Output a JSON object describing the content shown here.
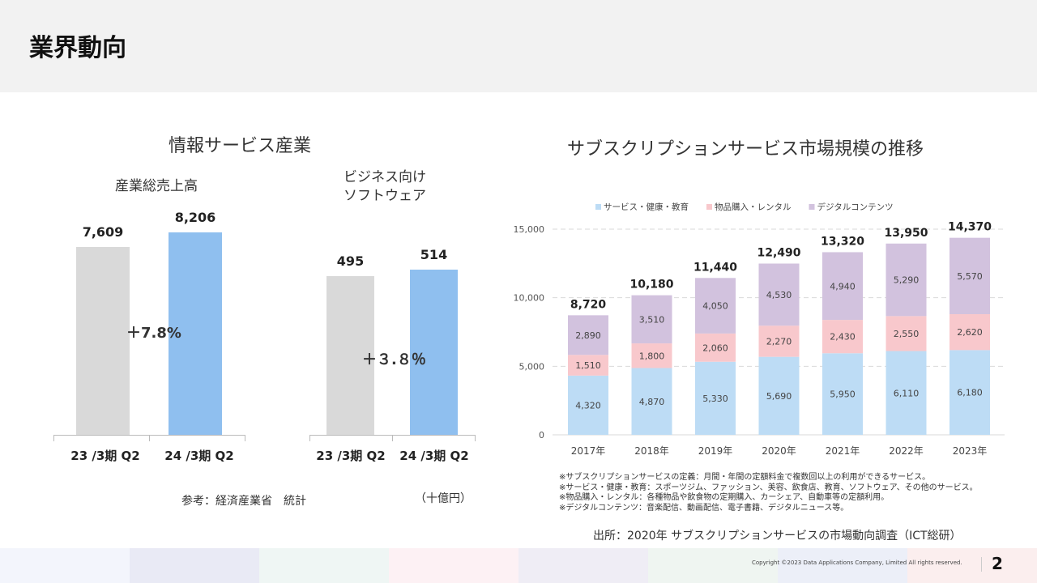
{
  "header": {
    "title": "業界動向"
  },
  "left": {
    "title": "情報サービス産業",
    "chart1": {
      "subtitle": "産業総売上高",
      "categories": [
        "23 /3期 Q2",
        "24 /3期 Q2"
      ],
      "values": [
        7609,
        8206
      ],
      "labels": [
        "7,609",
        "8,206"
      ],
      "growth": "＋7.8%",
      "colors": [
        "#d9d9d9",
        "#8fbfef"
      ]
    },
    "chart2": {
      "subtitle_line1": "ビジネス向け",
      "subtitle_line2": "ソフトウェア",
      "categories": [
        "23 /3期 Q2",
        "24 /3期 Q2"
      ],
      "values": [
        495,
        514
      ],
      "labels": [
        "495",
        "514"
      ],
      "growth": "＋３.８％",
      "colors": [
        "#d9d9d9",
        "#8fbfef"
      ]
    },
    "source": "参考：経済産業省　統計",
    "unit": "（十億円）"
  },
  "chart_data": {
    "type": "bar",
    "stacked": true,
    "title": "サブスクリプションサービス市場規模の推移",
    "categories": [
      "2017年",
      "2018年",
      "2019年",
      "2020年",
      "2021年",
      "2022年",
      "2023年"
    ],
    "series": [
      {
        "name": "サービス・健康・教育",
        "values": [
          4320,
          4870,
          5330,
          5690,
          5950,
          6110,
          6180
        ],
        "color": "#bddcf5"
      },
      {
        "name": "物品購入・レンタル",
        "values": [
          1510,
          1800,
          2060,
          2270,
          2430,
          2550,
          2620
        ],
        "color": "#f8c8cc"
      },
      {
        "name": "デジタルコンテンツ",
        "values": [
          2890,
          3510,
          4050,
          4530,
          4940,
          5290,
          5570
        ],
        "color": "#d2c2de"
      }
    ],
    "totals": [
      8720,
      10180,
      11440,
      12490,
      13320,
      13950,
      14370
    ],
    "ylim": [
      0,
      15000
    ],
    "yticks": [
      0,
      5000,
      10000,
      15000
    ],
    "grid": true,
    "legend": "top"
  },
  "notes": [
    "※サブスクリプションサービスの定義：月間・年間の定額料金で複数回以上の利用ができるサービス。",
    "※サービス・健康・教育：スポーツジム、ファッション、美容、飲食店、教育、ソフトウェア、その他のサービス。",
    "※物品購入・レンタル：各種物品や飲食物の定期購入、カーシェア、自動車等の定額利用。",
    "※デジタルコンテンツ：音楽配信、動画配信、電子書籍、デジタルニュース等。"
  ],
  "source": "出所：2020年 サブスクリプションサービスの市場動向調査（ICT総研）",
  "footer": {
    "copyright": "Copyright ©2023 Data Applications Company, Limited All rights reserved.",
    "page": "2",
    "colors": [
      "#f3f5fc",
      "#e9eaf5",
      "#eff6f4",
      "#fdf1f4",
      "#efedf5",
      "#eff5f1",
      "#eceff8",
      "#fbeeee"
    ]
  }
}
